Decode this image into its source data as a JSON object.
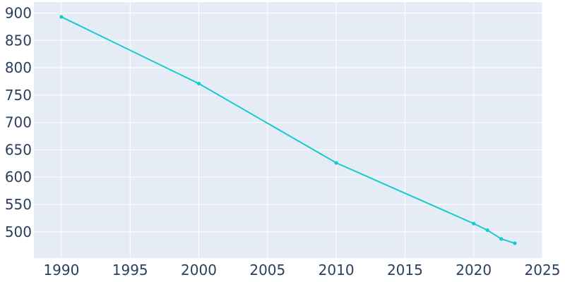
{
  "chart_data": {
    "type": "line",
    "title": "",
    "xlabel": "",
    "ylabel": "",
    "xlim": [
      1988,
      2025
    ],
    "ylim": [
      452,
      920
    ],
    "x_ticks": [
      1990,
      1995,
      2000,
      2005,
      2010,
      2015,
      2020,
      2025
    ],
    "y_ticks": [
      500,
      550,
      600,
      650,
      700,
      750,
      800,
      850,
      900
    ],
    "grid": true,
    "colors": {
      "plot_bg": "#e5ecf6",
      "line": "#17cbcb",
      "text": "#2a3f5f",
      "grid": "#ffffff"
    },
    "series": [
      {
        "x": [
          1990,
          2000,
          2010,
          2020,
          2021,
          2022,
          2023
        ],
        "y": [
          893,
          771,
          626,
          515,
          503,
          487,
          479
        ]
      }
    ]
  }
}
